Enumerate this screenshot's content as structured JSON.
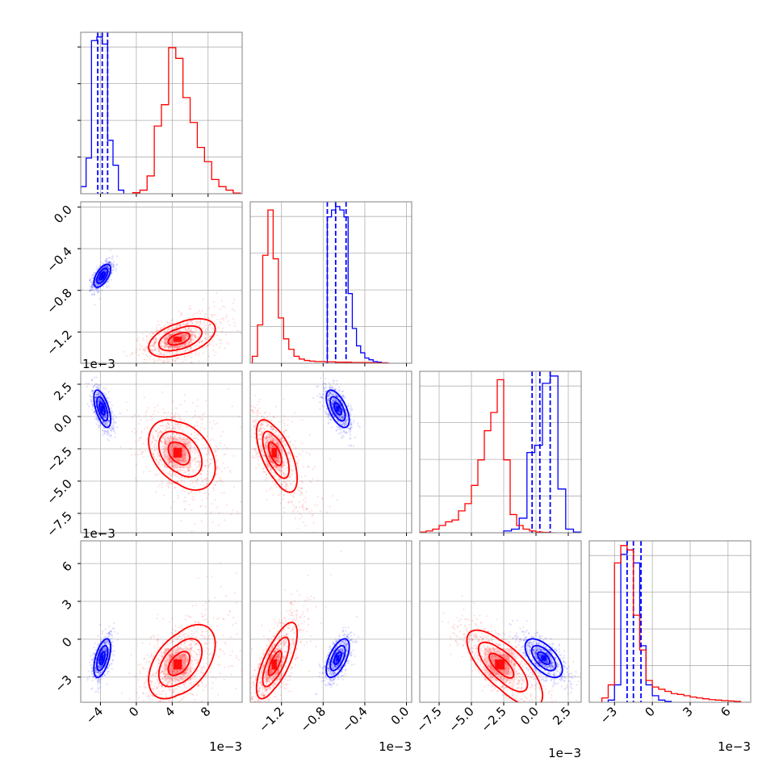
{
  "chart_data": {
    "type": "corner",
    "colors": {
      "blue": "#0000ff",
      "red": "#ff0000",
      "grid": "#b0b0b0",
      "frame": "#808080",
      "text": "#000000"
    },
    "grid": true,
    "parameters": [
      {
        "range": [
          -6.2,
          11.8
        ],
        "ticks": [
          -4,
          0,
          4,
          8
        ],
        "tick_labels": [
          "−4",
          "0",
          "4",
          "8"
        ],
        "offset_label": "1e−3"
      },
      {
        "range": [
          -1.5,
          0.05
        ],
        "ticks": [
          -1.2,
          -0.8,
          -0.4,
          0.0
        ],
        "tick_labels": [
          "−1.2",
          "−0.8",
          "−0.4",
          "0.0"
        ],
        "offset_label": "1e−3"
      },
      {
        "range": [
          -9.0,
          3.5
        ],
        "ticks": [
          -7.5,
          -5.0,
          -2.5,
          0.0,
          2.5
        ],
        "tick_labels": [
          "−7.5",
          "−5.0",
          "−2.5",
          "0.0",
          "2.5"
        ],
        "offset_label": "1e−3"
      },
      {
        "range": [
          -5.0,
          7.8
        ],
        "ticks": [
          -3,
          0,
          3,
          6
        ],
        "tick_labels": [
          "−3",
          "0",
          "3",
          "6"
        ],
        "offset_label": "1e−3"
      }
    ],
    "series": [
      {
        "color": "blue",
        "mean": [
          -3.8,
          -0.66,
          0.6,
          -1.5
        ],
        "sd": [
          0.55,
          0.065,
          0.85,
          0.9
        ],
        "correlations": [
          [
            0,
            1,
            0.6
          ],
          [
            0,
            2,
            -0.6
          ],
          [
            0,
            3,
            0.55
          ],
          [
            1,
            2,
            -0.6
          ],
          [
            1,
            3,
            0.6
          ],
          [
            2,
            3,
            -0.6
          ]
        ],
        "quantiles": [
          [
            -4.3,
            -3.8,
            -3.2
          ],
          [
            -0.76,
            -0.68,
            -0.58
          ],
          [
            -0.3,
            0.3,
            1.1
          ],
          [
            -2.0,
            -1.5,
            -0.9
          ]
        ],
        "histograms": [
          {
            "edges": [
              -6.2,
              -5.6,
              -5.0,
              -4.4,
              -3.8,
              -3.2,
              -2.6,
              -2.0,
              -1.4
            ],
            "counts": [
              0.2,
              1.0,
              4.3,
              4.4,
              4.2,
              1.5,
              0.8,
              0.1
            ]
          },
          {
            "edges": [
              -0.76,
              -0.72,
              -0.68,
              -0.64,
              -0.6,
              -0.56,
              -0.52,
              -0.48,
              -0.44,
              -0.4,
              -0.36,
              -0.32,
              -0.28,
              -0.24,
              -0.2,
              -0.16
            ],
            "counts": [
              4.2,
              4.4,
              4.5,
              4.4,
              4.2,
              2.0,
              1.0,
              0.5,
              0.3,
              0.15,
              0.1,
              0.05,
              0.03,
              0.01,
              0.0
            ]
          },
          {
            "edges": [
              -2.5,
              -1.9,
              -1.3,
              -0.7,
              -0.1,
              0.5,
              1.1,
              1.7,
              2.3,
              2.9,
              3.5
            ],
            "counts": [
              0.05,
              0.1,
              0.4,
              2.2,
              2.4,
              4.1,
              4.3,
              1.2,
              0.1,
              0.02
            ]
          },
          {
            "edges": [
              -3.5,
              -3.0,
              -2.5,
              -2.0,
              -1.5,
              -1.0,
              -0.5,
              0.0,
              0.5,
              1.0,
              1.5
            ],
            "counts": [
              0.05,
              0.4,
              3.4,
              3.5,
              3.2,
              1.3,
              0.4,
              0.15,
              0.05,
              0.02
            ]
          }
        ]
      },
      {
        "color": "red",
        "mean": [
          4.6,
          -1.27,
          -2.8,
          -2.0
        ],
        "sd": [
          1.9,
          0.1,
          1.5,
          1.6
        ],
        "correlations": [
          [
            0,
            1,
            0.45
          ],
          [
            0,
            2,
            -0.35
          ],
          [
            0,
            3,
            0.45
          ],
          [
            1,
            2,
            -0.6
          ],
          [
            1,
            3,
            0.7
          ],
          [
            2,
            3,
            -0.7
          ]
        ],
        "histograms": [
          {
            "edges": [
              -0.4,
              0.4,
              1.2,
              2.0,
              2.8,
              3.6,
              4.4,
              5.2,
              6.0,
              6.8,
              7.6,
              8.4,
              9.2,
              10.0,
              10.8,
              11.6
            ],
            "counts": [
              0.03,
              0.1,
              0.5,
              1.9,
              2.5,
              4.1,
              3.8,
              2.7,
              2.0,
              1.3,
              0.9,
              0.4,
              0.2,
              0.1,
              0.02
            ]
          },
          {
            "edges": [
              -1.48,
              -1.43,
              -1.38,
              -1.33,
              -1.28,
              -1.23,
              -1.18,
              -1.13,
              -1.08,
              -1.03,
              -0.98,
              -0.93,
              -0.88,
              -0.83,
              -0.78,
              -0.73,
              -0.68,
              -0.63,
              -0.58,
              -0.53,
              -0.48,
              -0.43,
              -0.38,
              -0.33,
              -0.28,
              -0.23,
              -0.18
            ],
            "counts": [
              0.2,
              1.1,
              3.1,
              4.4,
              3.0,
              1.3,
              0.7,
              0.4,
              0.2,
              0.12,
              0.08,
              0.06,
              0.05,
              0.05,
              0.04,
              0.04,
              0.03,
              0.03,
              0.03,
              0.02,
              0.02,
              0.02,
              0.02,
              0.01,
              0.01,
              0.01
            ]
          },
          {
            "edges": [
              -9.0,
              -8.5,
              -8.0,
              -7.5,
              -7.0,
              -6.5,
              -6.0,
              -5.5,
              -5.0,
              -4.5,
              -4.0,
              -3.5,
              -3.0,
              -2.5,
              -2.0,
              -1.5,
              -1.0,
              -0.5,
              0.0,
              0.5,
              1.0,
              1.5
            ],
            "counts": [
              0.02,
              0.05,
              0.1,
              0.2,
              0.3,
              0.35,
              0.6,
              0.8,
              1.3,
              2.0,
              2.8,
              3.3,
              4.2,
              2.0,
              0.5,
              0.2,
              0.1,
              0.05,
              0.02,
              0.01,
              0.0
            ]
          },
          {
            "edges": [
              -4.0,
              -3.5,
              -3.0,
              -2.5,
              -2.0,
              -1.5,
              -1.0,
              -0.5,
              0.0,
              0.5,
              1.0,
              1.5,
              2.0,
              2.5,
              3.0,
              3.5,
              4.0,
              4.5,
              5.0,
              5.5,
              6.0,
              6.5,
              7.0
            ],
            "counts": [
              0.1,
              0.4,
              3.2,
              3.6,
              3.5,
              2.0,
              1.2,
              0.5,
              0.35,
              0.3,
              0.25,
              0.2,
              0.18,
              0.15,
              0.12,
              0.1,
              0.08,
              0.06,
              0.05,
              0.04,
              0.03,
              0.02
            ]
          }
        ]
      }
    ]
  }
}
